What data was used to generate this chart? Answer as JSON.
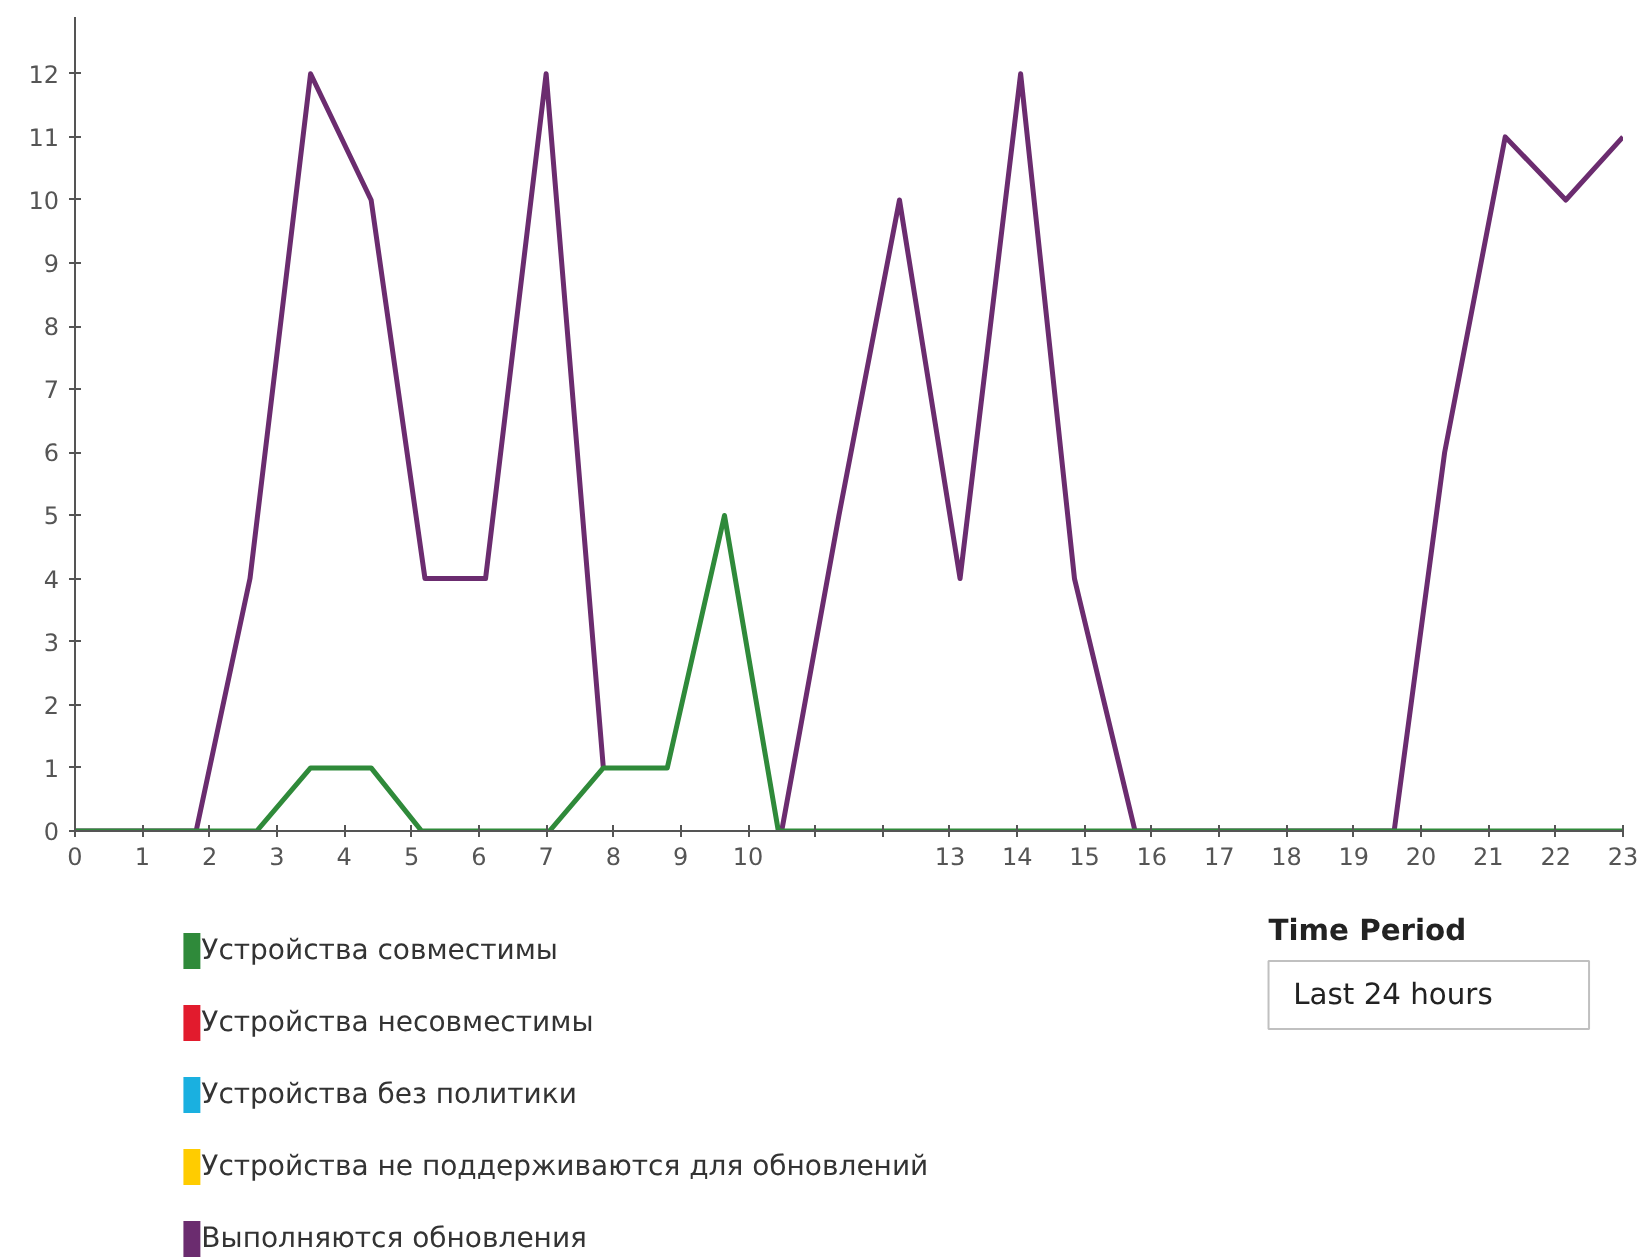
{
  "chart_data": {
    "type": "line",
    "xlim": [
      0,
      23
    ],
    "ylim": [
      0,
      12.9
    ],
    "xticks": [
      0,
      1,
      2,
      3,
      4,
      5,
      6,
      7,
      8,
      9,
      10,
      {
        "value": 11,
        "label": null
      },
      {
        "value": 12,
        "label": null
      },
      13,
      14,
      15,
      16,
      17,
      18,
      19,
      20,
      21,
      22,
      23
    ],
    "yticks": [
      0,
      1,
      2,
      3,
      4,
      5,
      6,
      7,
      8,
      9,
      10,
      11,
      12
    ],
    "grid": false,
    "legend": "bottom",
    "series": [
      {
        "name": "Устройства совместимы",
        "color": "#2f8a3a",
        "x": [
          0,
          2.7,
          3.5,
          4.4,
          5.15,
          7.05,
          7.85,
          8.8,
          9.65,
          10.45,
          23
        ],
        "values": [
          0,
          0,
          1,
          1,
          0,
          0,
          1,
          1,
          5,
          0,
          0
        ]
      },
      {
        "name": "Устройства несовместимы",
        "color": "#e21b2d"
      },
      {
        "name": "Устройства без политики",
        "color": "#1ab0e0"
      },
      {
        "name": "Устройства не поддерживаются для обновлений",
        "color": "#ffcc00"
      },
      {
        "name": "Выполняются обновления",
        "color": "#6b2c6f",
        "x": [
          0,
          1.8,
          2.6,
          3.5,
          4.4,
          5.2,
          6.1,
          7.0,
          7.85,
          9.0,
          10.5,
          11.35,
          12.25,
          13.15,
          14.05,
          14.85,
          15.75,
          19.6,
          20.35,
          21.25,
          22.15,
          23
        ],
        "values": [
          0,
          0,
          4,
          12,
          10,
          4,
          4,
          12,
          1,
          null,
          0,
          5,
          10,
          4,
          12,
          4,
          0,
          0,
          6,
          11,
          10,
          11
        ]
      }
    ],
    "annotations": [
      "Time Period",
      "Last 24 hours"
    ]
  }
}
